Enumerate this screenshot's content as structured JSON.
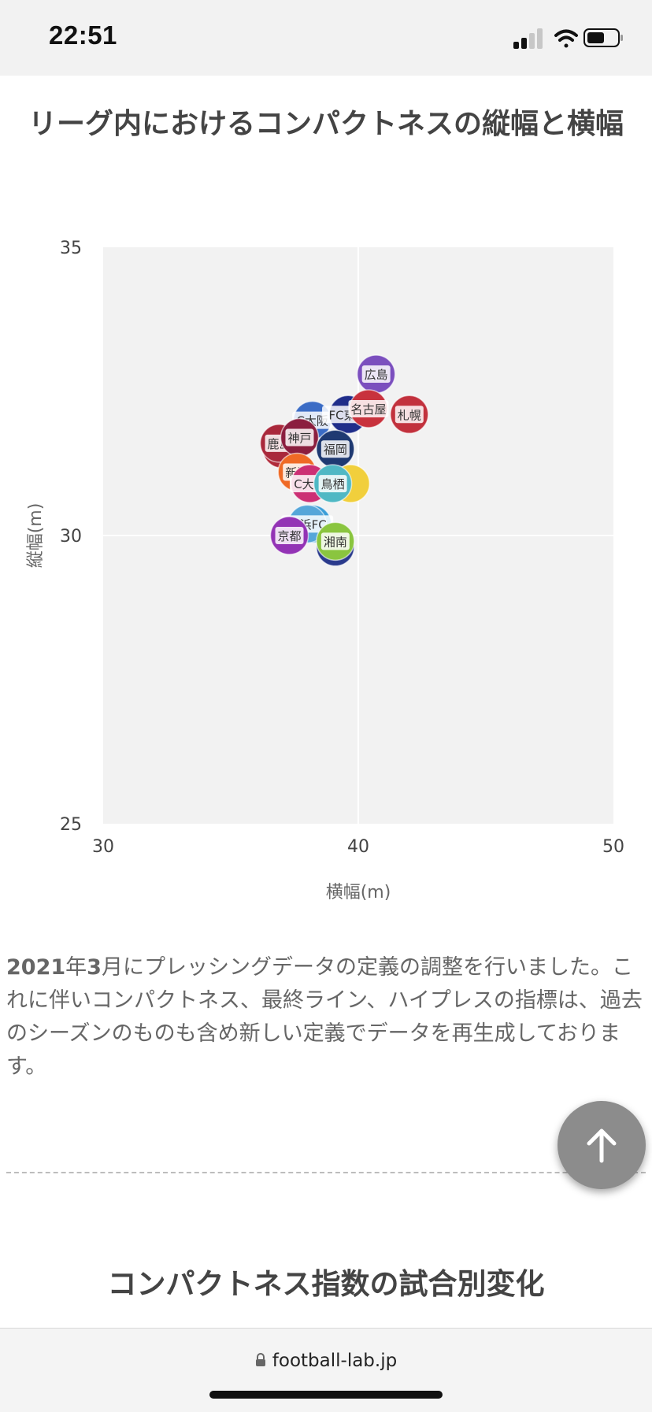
{
  "status": {
    "time": "22:51"
  },
  "page": {
    "title": "リーグ内におけるコンパクトネスの縦幅と横幅",
    "note_year": "2021",
    "note_year_suffix": "年",
    "note_month": "3",
    "note_rest": "月にプレッシングデータの定義の調整を行いました。これに伴いコンパクトネス、最終ライン、ハイプレスの指標は、過去のシーズンのものも含め新しい定義でデータを再生成しております。",
    "section_title": "コンパクトネス指数の試合別変化"
  },
  "browser": {
    "url": "football-lab.jp"
  },
  "icons": {
    "scroll_top": "arrow-up-icon",
    "lock": "lock-icon"
  },
  "chart_data": {
    "type": "scatter",
    "xlabel": "横幅(m)",
    "ylabel": "縦幅(m)",
    "xlim": [
      30,
      50
    ],
    "ylim": [
      25,
      35
    ],
    "x_ticks": [
      "30",
      "40",
      "50"
    ],
    "y_ticks": [
      "35",
      "30",
      "25"
    ],
    "grid": true,
    "points": [
      {
        "label": "広島",
        "x": 40.7,
        "y": 32.8,
        "color": "#7b4fbe"
      },
      {
        "label": "",
        "x": 39.7,
        "y": 30.9,
        "color": "#f1cf3c"
      },
      {
        "label": "",
        "x": 39.1,
        "y": 29.8,
        "color": "#2a3a8c"
      },
      {
        "label": "",
        "x": 38.2,
        "y": 30.2,
        "color": "#3a9ed8"
      },
      {
        "label": "",
        "x": 37.0,
        "y": 31.5,
        "color": "#b02a3a"
      },
      {
        "label": "C大阪",
        "x": 38.2,
        "y": 32.0,
        "color": "#3b6cc5"
      },
      {
        "label": "FC東京",
        "x": 39.6,
        "y": 32.1,
        "color": "#1f2d8a"
      },
      {
        "label": "名古屋",
        "x": 40.4,
        "y": 32.2,
        "color": "#c8323d"
      },
      {
        "label": "札幌",
        "x": 42.0,
        "y": 32.1,
        "color": "#c2313d"
      },
      {
        "label": "鹿島",
        "x": 36.9,
        "y": 31.6,
        "color": "#a9283b"
      },
      {
        "label": "神戸",
        "x": 37.7,
        "y": 31.7,
        "color": "#8b1e3f"
      },
      {
        "label": "福岡",
        "x": 39.1,
        "y": 31.5,
        "color": "#1f3a72"
      },
      {
        "label": "新潟",
        "x": 37.6,
        "y": 31.1,
        "color": "#ef6a25"
      },
      {
        "label": "C大阪",
        "x": 38.1,
        "y": 30.9,
        "color": "#cc2f74"
      },
      {
        "label": "鳥栖",
        "x": 39.0,
        "y": 30.9,
        "color": "#4fb8c4"
      },
      {
        "label": "横浜FC",
        "x": 38.0,
        "y": 30.2,
        "color": "#55a6d9"
      },
      {
        "label": "京都",
        "x": 37.3,
        "y": 30.0,
        "color": "#9333b5"
      },
      {
        "label": "湘南",
        "x": 39.1,
        "y": 29.9,
        "color": "#8ac53f"
      }
    ]
  }
}
